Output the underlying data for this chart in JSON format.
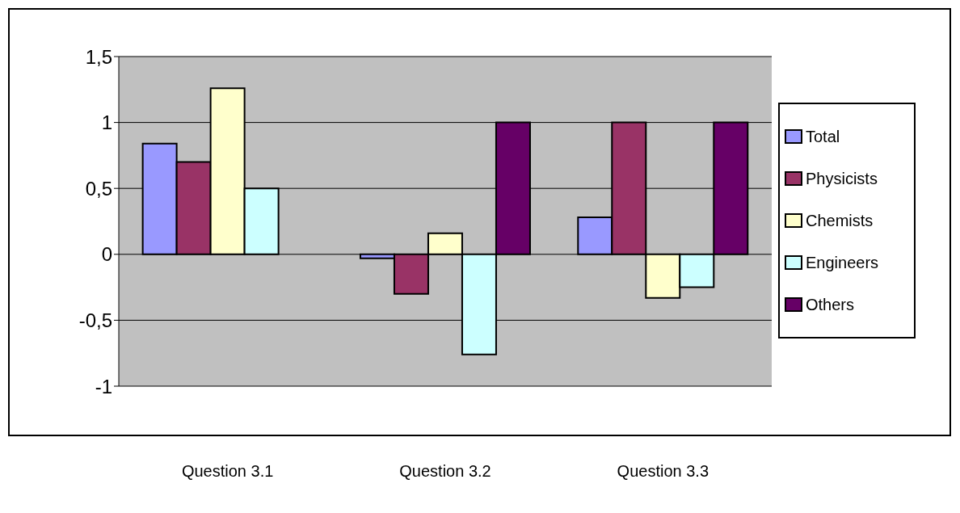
{
  "chart_data": {
    "type": "bar",
    "categories": [
      "Question 3.1",
      "Question 3.2",
      "Question 3.3"
    ],
    "series": [
      {
        "name": "Total",
        "color": "#9999ff",
        "values": [
          0.84,
          -0.03,
          0.28
        ]
      },
      {
        "name": "Physicists",
        "color": "#993366",
        "values": [
          0.7,
          -0.3,
          1
        ]
      },
      {
        "name": "Chemists",
        "color": "#ffffcc",
        "values": [
          1.26,
          0.16,
          -0.33
        ]
      },
      {
        "name": "Engineers",
        "color": "#ccffff",
        "values": [
          0.5,
          -0.76,
          -0.25
        ]
      },
      {
        "name": "Others",
        "color": "#660066",
        "values": [
          null,
          1,
          1
        ]
      }
    ],
    "ylim": [
      -1,
      1.5
    ],
    "yticks": [
      {
        "value": -1,
        "label": "-1"
      },
      {
        "value": -0.5,
        "label": "-0,5"
      },
      {
        "value": 0,
        "label": "0"
      },
      {
        "value": 0.5,
        "label": "0,5"
      },
      {
        "value": 1,
        "label": "1"
      },
      {
        "value": 1.5,
        "label": "1,5"
      }
    ],
    "grid": "y",
    "legend": "right"
  }
}
